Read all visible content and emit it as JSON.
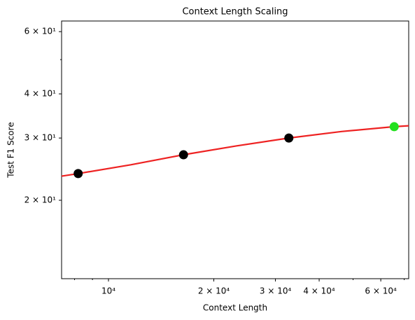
{
  "chart_data": {
    "type": "scatter",
    "title": "Context Length Scaling",
    "xlabel": "Context Length",
    "ylabel": "Test F1 Score",
    "xlog": true,
    "ylog": true,
    "xlim": [
      7345,
      72100
    ],
    "ylim": [
      12.0,
      64.3
    ],
    "xticks": [
      {
        "value": 10000,
        "label": "10⁴"
      },
      {
        "value": 20000,
        "label": "2 × 10⁴"
      },
      {
        "value": 30000,
        "label": "3 × 10⁴"
      },
      {
        "value": 40000,
        "label": "4 × 10⁴"
      },
      {
        "value": 60000,
        "label": "6 × 10⁴"
      }
    ],
    "x_minor_ticks": [
      8000,
      9000,
      50000,
      70000
    ],
    "yticks": [
      {
        "value": 20,
        "label": "2 × 10¹"
      },
      {
        "value": 30,
        "label": "3 × 10¹"
      },
      {
        "value": 40,
        "label": "4 × 10¹"
      },
      {
        "value": 60,
        "label": "6 × 10¹"
      }
    ],
    "y_minor_ticks": [
      50
    ],
    "series": [
      {
        "style": "line",
        "color": "#ee2222",
        "x": [
          7345,
          8192,
          11585,
          16384,
          23170,
          32768,
          46341,
          65536,
          72100
        ],
        "values": [
          23.4,
          23.8,
          25.2,
          26.9,
          28.5,
          30.0,
          31.3,
          32.3,
          32.5
        ]
      },
      {
        "style": "points",
        "x": [
          8192,
          16384,
          32768,
          65536
        ],
        "values": [
          23.8,
          26.9,
          30.0,
          32.3
        ],
        "colors": [
          "#000000",
          "#000000",
          "#000000",
          "#22e01e"
        ]
      }
    ]
  }
}
